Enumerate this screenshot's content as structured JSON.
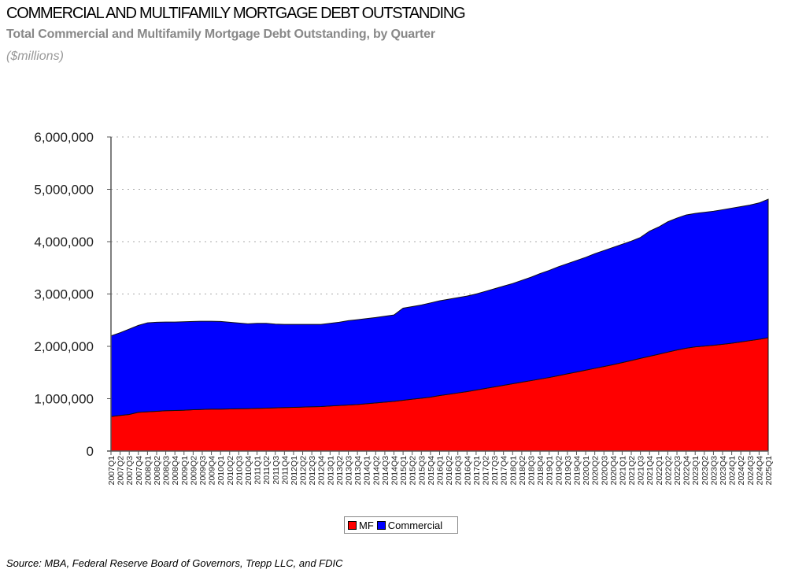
{
  "title": "COMMERCIAL AND MULTIFAMILY MORTGAGE DEBT OUTSTANDING",
  "subtitle": "Total Commercial and Multifamily Mortgage Debt Outstanding, by Quarter",
  "units": "($millions)",
  "source": "Source:  MBA, Federal Reserve Board of Governors, Trepp LLC, and FDIC",
  "chart_data": {
    "type": "area",
    "stacked": true,
    "title": "COMMERCIAL AND MULTIFAMILY MORTGAGE DEBT OUTSTANDING",
    "xlabel": "",
    "ylabel": "",
    "ylim": [
      0,
      6000000
    ],
    "yticks": [
      "0",
      "1,000,000",
      "2,000,000",
      "3,000,000",
      "4,000,000",
      "5,000,000",
      "6,000,000"
    ],
    "grid": "horizontal dotted",
    "legend": "bottom",
    "categories": [
      "2007Q1",
      "2007Q2",
      "2007Q3",
      "2007Q4",
      "2008Q1",
      "2008Q2",
      "2008Q3",
      "2008Q4",
      "2009Q1",
      "2009Q2",
      "2009Q3",
      "2009Q4",
      "2010Q1",
      "2010Q2",
      "2010Q3",
      "2010Q4",
      "2011Q1",
      "2011Q2",
      "2011Q3",
      "2011Q4",
      "2012Q1",
      "2012Q2",
      "2012Q3",
      "2012Q4",
      "2013Q1",
      "2013Q2",
      "2013Q3",
      "2013Q4",
      "2014Q1",
      "2014Q2",
      "2014Q3",
      "2014Q4",
      "2015Q1",
      "2015Q2",
      "2015Q3",
      "2015Q4",
      "2016Q1",
      "2016Q2",
      "2016Q3",
      "2016Q4",
      "2017Q1",
      "2017Q2",
      "2017Q3",
      "2017Q4",
      "2018Q1",
      "2018Q2",
      "2018Q3",
      "2018Q4",
      "2019Q1",
      "2019Q2",
      "2019Q3",
      "2019Q4",
      "2020Q1",
      "2020Q2",
      "2020Q3",
      "2020Q4",
      "2021Q1",
      "2021Q2",
      "2021Q3",
      "2021Q4",
      "2022Q1",
      "2022Q2",
      "2022Q3",
      "2022Q4",
      "2023Q1",
      "2023Q2",
      "2023Q3",
      "2023Q4",
      "2024Q1",
      "2024Q2",
      "2024Q3",
      "2024Q4",
      "2025Q1"
    ],
    "series": [
      {
        "name": "MF",
        "color": "#ff0000",
        "values": [
          660000,
          680000,
          700000,
          740000,
          750000,
          760000,
          770000,
          775000,
          780000,
          790000,
          795000,
          800000,
          800000,
          805000,
          808000,
          810000,
          815000,
          820000,
          825000,
          830000,
          835000,
          840000,
          845000,
          850000,
          860000,
          870000,
          880000,
          890000,
          905000,
          920000,
          935000,
          950000,
          970000,
          990000,
          1010000,
          1030000,
          1060000,
          1085000,
          1110000,
          1135000,
          1165000,
          1195000,
          1225000,
          1255000,
          1285000,
          1315000,
          1345000,
          1375000,
          1405000,
          1440000,
          1475000,
          1510000,
          1545000,
          1580000,
          1615000,
          1650000,
          1690000,
          1730000,
          1770000,
          1810000,
          1850000,
          1890000,
          1930000,
          1965000,
          1990000,
          2005000,
          2020000,
          2040000,
          2060000,
          2085000,
          2110000,
          2135000,
          2165000
        ]
      },
      {
        "name": "Commercial",
        "color": "#0000ff",
        "values": [
          1540000,
          1580000,
          1630000,
          1660000,
          1700000,
          1700000,
          1695000,
          1690000,
          1690000,
          1685000,
          1685000,
          1680000,
          1675000,
          1655000,
          1637000,
          1620000,
          1625000,
          1620000,
          1600000,
          1590000,
          1585000,
          1580000,
          1575000,
          1570000,
          1580000,
          1590000,
          1610000,
          1620000,
          1625000,
          1630000,
          1640000,
          1650000,
          1760000,
          1770000,
          1780000,
          1800000,
          1810000,
          1815000,
          1820000,
          1825000,
          1835000,
          1855000,
          1875000,
          1895000,
          1915000,
          1945000,
          1975000,
          2015000,
          2045000,
          2080000,
          2105000,
          2130000,
          2155000,
          2190000,
          2215000,
          2240000,
          2260000,
          2280000,
          2310000,
          2390000,
          2430000,
          2490000,
          2520000,
          2545000,
          2550000,
          2555000,
          2560000,
          2570000,
          2580000,
          2585000,
          2590000,
          2605000,
          2645000
        ]
      }
    ]
  }
}
